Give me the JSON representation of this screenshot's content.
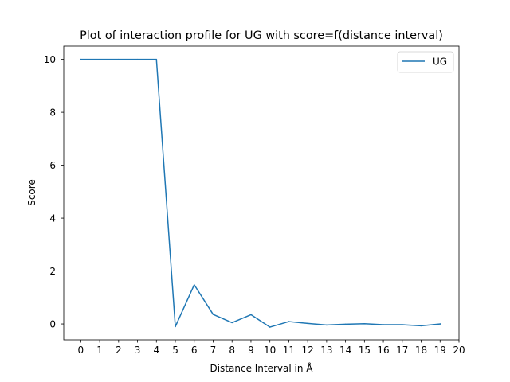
{
  "chart_data": {
    "type": "line",
    "title": "Plot of interaction profile for UG with score=f(distance interval)",
    "xlabel": "Distance Interval in Å",
    "ylabel": "Score",
    "xlim": [
      -0.9,
      20.0
    ],
    "ylim": [
      -0.6,
      10.5
    ],
    "x_ticks": [
      0,
      1,
      2,
      3,
      4,
      5,
      6,
      7,
      8,
      9,
      10,
      11,
      12,
      13,
      14,
      15,
      16,
      17,
      18,
      19,
      20
    ],
    "y_ticks": [
      0,
      2,
      4,
      6,
      8,
      10
    ],
    "grid": false,
    "legend": "top-right",
    "series": [
      {
        "name": "UG",
        "color": "#1f77b4",
        "x": [
          0,
          1,
          2,
          3,
          4,
          5,
          6,
          7,
          8,
          9,
          10,
          11,
          12,
          13,
          14,
          15,
          16,
          17,
          18,
          19
        ],
        "values": [
          10,
          10,
          10,
          10,
          10,
          -0.1,
          1.48,
          0.36,
          0.05,
          0.35,
          -0.12,
          0.09,
          0.02,
          -0.04,
          -0.01,
          0.01,
          -0.03,
          -0.03,
          -0.07,
          0.0
        ]
      }
    ]
  }
}
